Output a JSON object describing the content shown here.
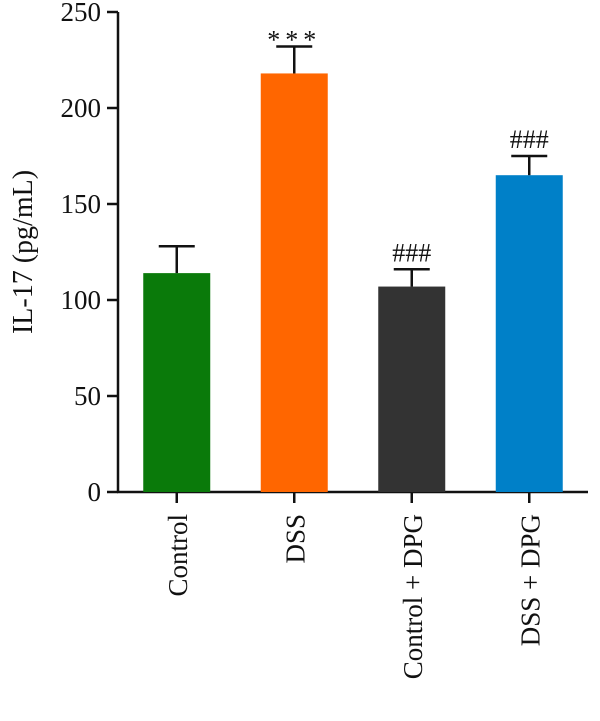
{
  "chart_data": {
    "type": "bar",
    "title": "",
    "xlabel": "",
    "ylabel": "IL-17 (pg/mL)",
    "ylim": [
      0,
      250
    ],
    "yticks": [
      0,
      50,
      100,
      150,
      200,
      250
    ],
    "grid": false,
    "legend": "none",
    "categories": [
      "Control",
      "DSS",
      "Control + DPG",
      "DSS + DPG"
    ],
    "values": [
      114,
      218,
      107,
      165
    ],
    "errors": [
      14,
      14,
      9,
      10
    ],
    "annotations": [
      "",
      "***",
      "###",
      "###"
    ],
    "colors": [
      "#0a7a0a",
      "#ff6600",
      "#333333",
      "#0080c8"
    ]
  }
}
